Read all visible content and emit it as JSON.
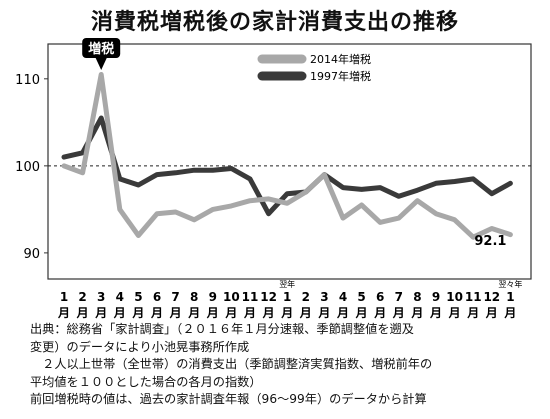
{
  "title": "消費税増税後の家計消費支出の推移",
  "chart_data": {
    "type": "line",
    "ylim": [
      87,
      114
    ],
    "yticks": [
      90,
      100,
      110
    ],
    "reference_line": 100,
    "grid": false,
    "legend_placement": "top-right",
    "x_labels": [
      {
        "num": "1",
        "unit": "月"
      },
      {
        "num": "2",
        "unit": "月"
      },
      {
        "num": "3",
        "unit": "月"
      },
      {
        "num": "4",
        "unit": "月"
      },
      {
        "num": "5",
        "unit": "月"
      },
      {
        "num": "6",
        "unit": "月"
      },
      {
        "num": "7",
        "unit": "月"
      },
      {
        "num": "8",
        "unit": "月"
      },
      {
        "num": "9",
        "unit": "月"
      },
      {
        "num": "10",
        "unit": "月"
      },
      {
        "num": "11",
        "unit": "月"
      },
      {
        "num": "12",
        "unit": "月"
      },
      {
        "num": "1",
        "unit": "月"
      },
      {
        "num": "2",
        "unit": "月"
      },
      {
        "num": "3",
        "unit": "月"
      },
      {
        "num": "4",
        "unit": "月"
      },
      {
        "num": "5",
        "unit": "月"
      },
      {
        "num": "6",
        "unit": "月"
      },
      {
        "num": "7",
        "unit": "月"
      },
      {
        "num": "8",
        "unit": "月"
      },
      {
        "num": "9",
        "unit": "月"
      },
      {
        "num": "10",
        "unit": "月"
      },
      {
        "num": "11",
        "unit": "月"
      },
      {
        "num": "12",
        "unit": "月"
      },
      {
        "num": "1",
        "unit": "月"
      }
    ],
    "year_markers": [
      {
        "index": 12,
        "text": "翌年"
      },
      {
        "index": 24,
        "text": "翌々年"
      }
    ],
    "series": [
      {
        "name": "1997年増税",
        "color": "#3a3a3a",
        "values": [
          101.0,
          101.5,
          105.5,
          98.5,
          97.8,
          99.0,
          99.2,
          99.5,
          99.5,
          99.7,
          98.5,
          94.5,
          96.8,
          97.0,
          99.0,
          97.5,
          97.3,
          97.5,
          96.5,
          97.2,
          98.0,
          98.2,
          98.5,
          96.8,
          98.0
        ]
      },
      {
        "name": "2014年増税",
        "color": "#a8a8a8",
        "values": [
          100.0,
          99.2,
          110.5,
          95.0,
          92.0,
          94.5,
          94.7,
          93.8,
          95.0,
          95.4,
          96.0,
          96.2,
          95.7,
          97.0,
          99.0,
          94.0,
          95.5,
          93.5,
          94.0,
          96.0,
          94.5,
          93.8,
          91.8,
          92.8,
          92.1
        ]
      }
    ],
    "annotations": [
      {
        "text": "増税",
        "index": 3
      },
      {
        "text": "92.1",
        "index": 24
      }
    ]
  },
  "notes": [
    "出典：総務省「家計調査」（２０１６年１月分速報、季節調整値を遡及",
    "変更）のデータにより小池晃事務所作成",
    "　２人以上世帯（全世帯）の消費支出（季節調整済実質指数、増税前年の",
    "平均値を１００とした場合の各月の指数）",
    "前回増税時の値は、過去の家計調査年報（96〜99年）のデータから計算"
  ]
}
